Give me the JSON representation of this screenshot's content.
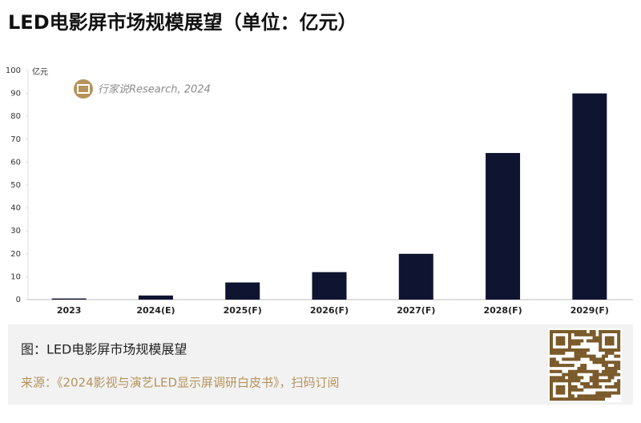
{
  "chart_data": {
    "type": "bar",
    "title": "LED电影屏市场规模展望（单位：亿元）",
    "y_unit": "亿元",
    "watermark": "行家说Research, 2024",
    "categories": [
      "2023",
      "2024(E)",
      "2025(F)",
      "2026(F)",
      "2027(F)",
      "2028(F)",
      "2029(F)"
    ],
    "values": [
      0.5,
      1.8,
      7.5,
      12,
      20,
      64,
      90
    ],
    "color": "#0f1430",
    "ylim": [
      0,
      100
    ],
    "yticks": [
      0,
      10,
      20,
      30,
      40,
      50,
      60,
      70,
      80,
      90,
      100
    ],
    "grid": false
  },
  "footer": {
    "caption": "图：LED电影屏市场规模展望",
    "source": "来源：《2024影视与演艺LED显示屏调研白皮书》，扫码订阅"
  }
}
